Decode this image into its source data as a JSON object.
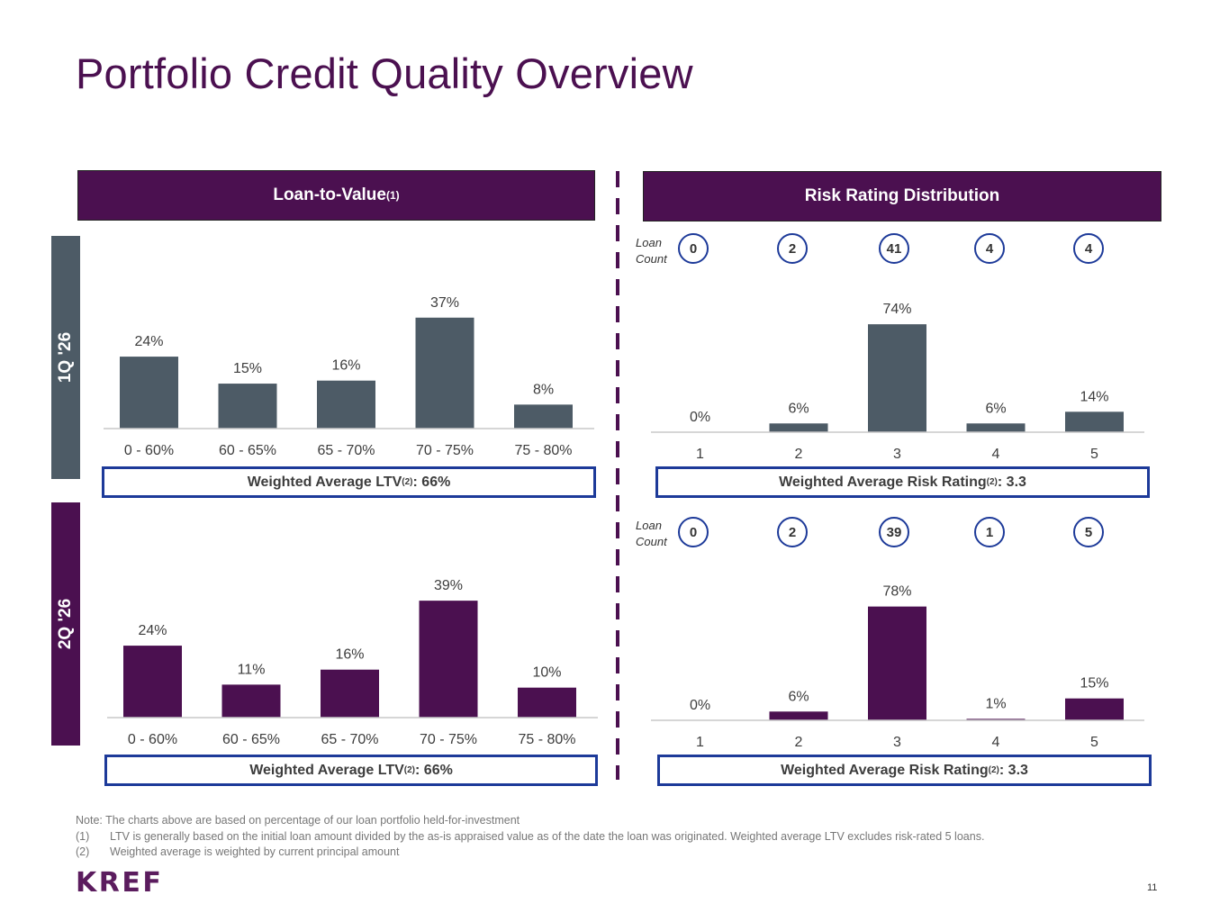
{
  "title": "Portfolio Credit Quality Overview",
  "ltv_header": {
    "label": "Loan-to-Value",
    "sup": "(1)"
  },
  "risk_header": {
    "label": "Risk Rating Distribution"
  },
  "quarters": [
    "1Q '26",
    "2Q '26"
  ],
  "loan_count_label": [
    "Loan",
    "Count"
  ],
  "loan_counts": {
    "q1": [
      "0",
      "2",
      "41",
      "4",
      "4"
    ],
    "q2": [
      "0",
      "2",
      "39",
      "1",
      "5"
    ]
  },
  "weighted": {
    "ltv_prefix": "Weighted Average LTV",
    "ltv_sup": "(2)",
    "ltv_q1": ": 66%",
    "ltv_q2": ": 66%",
    "risk_prefix": "Weighted Average Risk Rating",
    "risk_sup": "(2)",
    "risk_q1": ": 3.3",
    "risk_q2": ": 3.3"
  },
  "colors": {
    "purple": "#4b1050",
    "slate": "#4d5b66",
    "blue": "#1d3a99"
  },
  "chart_data": [
    {
      "id": "ltv_q1",
      "type": "bar",
      "categories": [
        "0 - 60%",
        "60 - 65%",
        "65 - 70%",
        "70 - 75%",
        "75 - 80%"
      ],
      "values": [
        24,
        15,
        16,
        37,
        8
      ],
      "labels": [
        "24%",
        "15%",
        "16%",
        "37%",
        "8%"
      ],
      "color": "#4d5b66"
    },
    {
      "id": "risk_q1",
      "type": "bar",
      "categories": [
        "1",
        "2",
        "3",
        "4",
        "5"
      ],
      "values": [
        0,
        6,
        74,
        6,
        14
      ],
      "labels": [
        "0%",
        "6%",
        "74%",
        "6%",
        "14%"
      ],
      "color": "#4d5b66"
    },
    {
      "id": "ltv_q2",
      "type": "bar",
      "categories": [
        "0 - 60%",
        "60 - 65%",
        "65 - 70%",
        "70 - 75%",
        "75 - 80%"
      ],
      "values": [
        24,
        11,
        16,
        39,
        10
      ],
      "labels": [
        "24%",
        "11%",
        "16%",
        "39%",
        "10%"
      ],
      "color": "#4b1050"
    },
    {
      "id": "risk_q2",
      "type": "bar",
      "categories": [
        "1",
        "2",
        "3",
        "4",
        "5"
      ],
      "values": [
        0,
        6,
        78,
        1,
        15
      ],
      "labels": [
        "0%",
        "6%",
        "78%",
        "1%",
        "15%"
      ],
      "color": "#4b1050"
    }
  ],
  "notes": [
    {
      "num": "",
      "text": "Note: The charts above are based on percentage of our loan portfolio held-for-investment"
    },
    {
      "num": "(1)",
      "text": "LTV is generally based on the initial loan amount divided by the as-is appraised value as of the date the loan was originated. Weighted average LTV excludes risk-rated 5 loans."
    },
    {
      "num": "(2)",
      "text": "Weighted average is weighted by current principal amount"
    }
  ],
  "logo": "KREF",
  "page_number": "11"
}
